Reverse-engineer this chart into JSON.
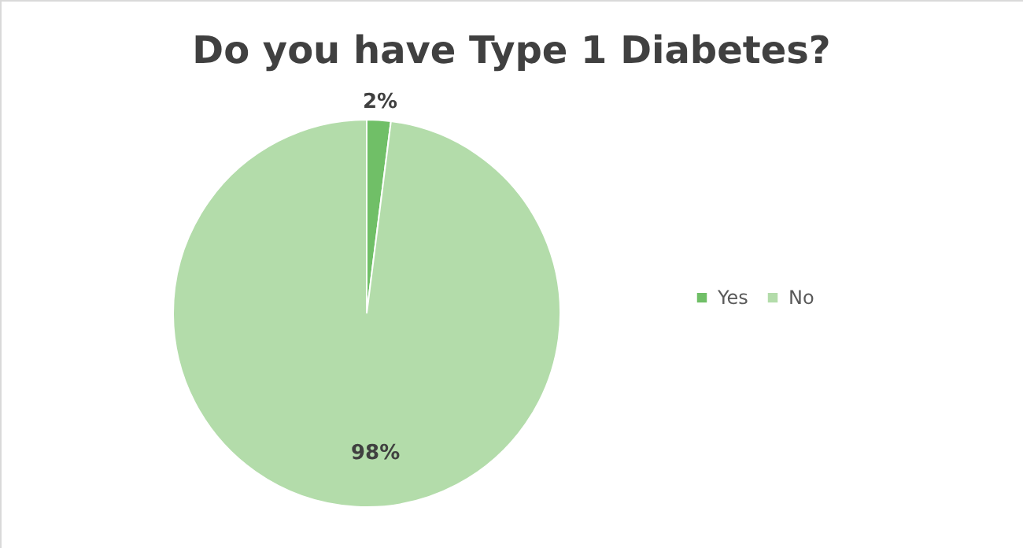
{
  "chart_data": {
    "type": "pie",
    "title": "Do you have Type 1 Diabetes?",
    "categories": [
      "Yes",
      "No"
    ],
    "values": [
      2,
      98
    ],
    "colors": [
      "#70bf67",
      "#b3dcaa"
    ],
    "value_labels": [
      "2%",
      "98%"
    ],
    "legend": "right"
  }
}
